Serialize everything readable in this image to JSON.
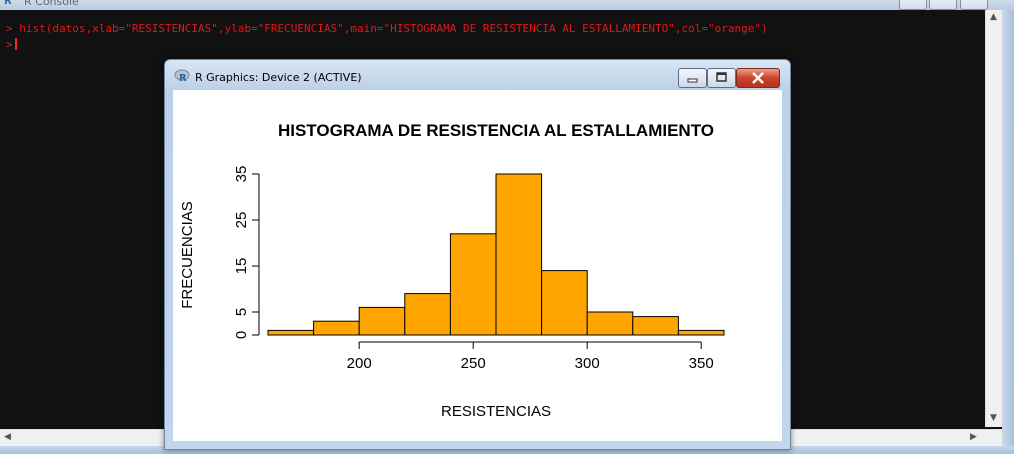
{
  "console": {
    "title": "R Console",
    "lines": [
      "> hist(datos,xlab=\"RESISTENCIAS\",ylab=\"FRECUENCIAS\",main=\"HISTOGRAMA DE RESISTENCIA AL ESTALLAMIENTO\",col=\"orange\")",
      ">"
    ]
  },
  "graphics_window": {
    "title": "R Graphics: Device 2 (ACTIVE)"
  },
  "colors": {
    "bar_fill": "#FFA500",
    "console_text": "#E01818",
    "console_bg": "#111111"
  },
  "chart_data": {
    "type": "bar",
    "title": "HISTOGRAMA DE RESISTENCIA AL ESTALLAMIENTO",
    "xlabel": "RESISTENCIAS",
    "ylabel": "FRECUENCIAS",
    "bins": [
      {
        "from": 160,
        "to": 180,
        "count": 1
      },
      {
        "from": 180,
        "to": 200,
        "count": 3
      },
      {
        "from": 200,
        "to": 220,
        "count": 6
      },
      {
        "from": 220,
        "to": 240,
        "count": 9
      },
      {
        "from": 240,
        "to": 260,
        "count": 22
      },
      {
        "from": 260,
        "to": 280,
        "count": 35
      },
      {
        "from": 280,
        "to": 300,
        "count": 14
      },
      {
        "from": 300,
        "to": 320,
        "count": 5
      },
      {
        "from": 320,
        "to": 340,
        "count": 4
      },
      {
        "from": 340,
        "to": 360,
        "count": 1
      }
    ],
    "xticks": [
      200,
      250,
      300,
      350
    ],
    "yticks": [
      0,
      5,
      15,
      25,
      35
    ],
    "xlim": [
      160,
      360
    ],
    "ylim": [
      0,
      35
    ],
    "grid": false
  }
}
